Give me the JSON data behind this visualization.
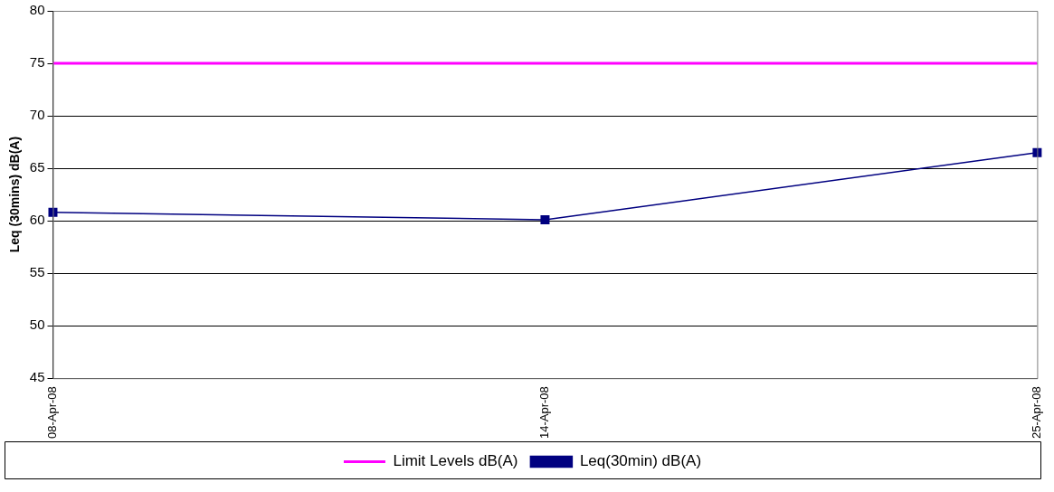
{
  "chart_data": {
    "type": "line",
    "ylabel": "Leq (30mins) dB(A)",
    "categories": [
      "08-Apr-08",
      "14-Apr-08",
      "25-Apr-08"
    ],
    "series": [
      {
        "name": "Limit Levels dB(A)",
        "color": "#ff00ff",
        "values": [
          75,
          75,
          75
        ],
        "marker": "none"
      },
      {
        "name": "Leq(30min) dB(A)",
        "color": "#000080",
        "values": [
          60.8,
          60.1,
          66.5
        ],
        "marker": "square"
      }
    ],
    "ylim": [
      45,
      80
    ],
    "yticks": [
      45,
      50,
      55,
      60,
      65,
      70,
      75,
      80
    ],
    "grid": "y",
    "legend": "bottom"
  }
}
